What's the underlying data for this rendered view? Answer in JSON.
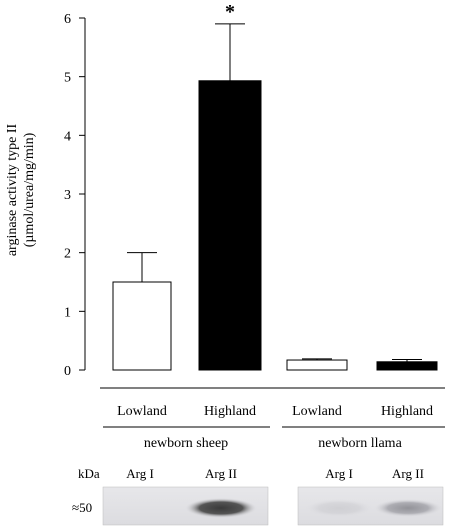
{
  "chart_data": {
    "type": "bar",
    "ylabel_line1": "arginase activity type II",
    "ylabel_line2": "(µmol/urea/mg/min)",
    "ylim": [
      0,
      6
    ],
    "yticks": [
      0,
      1,
      2,
      3,
      4,
      5,
      6
    ],
    "groups": [
      {
        "name": "newborn sheep",
        "categories": [
          {
            "label": "Lowland",
            "value": 1.5,
            "error": 0.5,
            "fill": "#ffffff"
          },
          {
            "label": "Highland",
            "value": 4.93,
            "error": 0.97,
            "fill": "#000000",
            "annotation": "*"
          }
        ]
      },
      {
        "name": "newborn llama",
        "categories": [
          {
            "label": "Lowland",
            "value": 0.17,
            "error": 0.02,
            "fill": "#ffffff"
          },
          {
            "label": "Highland",
            "value": 0.14,
            "error": 0.04,
            "fill": "#000000"
          }
        ]
      }
    ],
    "grid": false
  },
  "blot": {
    "unit_label": "kDa",
    "marker_label": "≈50",
    "lanes": [
      "Arg I",
      "Arg II"
    ],
    "sheep_band_level": [
      0.0,
      1.0
    ],
    "llama_band_level": [
      0.1,
      0.45
    ]
  }
}
